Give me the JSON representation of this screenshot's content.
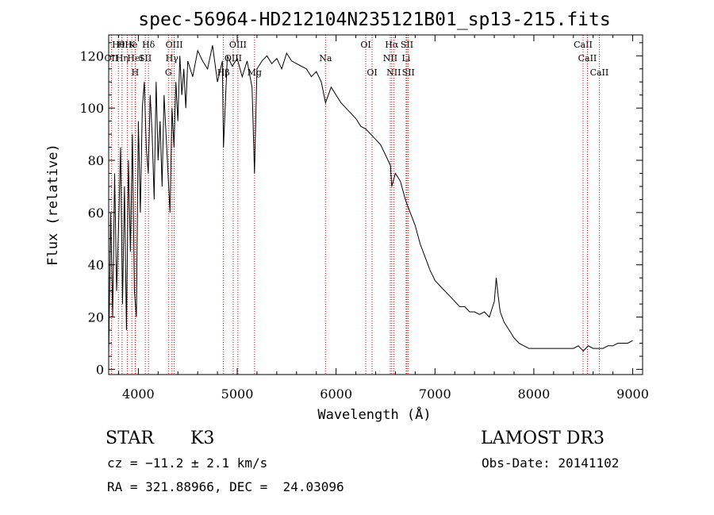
{
  "chart_data": {
    "type": "line",
    "title": "spec-56964-HD212104N235121B01_sp13-215.fits",
    "xlabel": "Wavelength (Å)",
    "ylabel": "Flux (relative)",
    "xlim": [
      3700,
      9100
    ],
    "ylim": [
      -2,
      128
    ],
    "xticks": [
      4000,
      5000,
      6000,
      7000,
      8000,
      9000
    ],
    "yticks": [
      0,
      20,
      40,
      60,
      80,
      100,
      120
    ],
    "grid": false,
    "spectrum": {
      "x": [
        3700,
        3720,
        3740,
        3760,
        3780,
        3800,
        3820,
        3840,
        3860,
        3880,
        3900,
        3920,
        3940,
        3960,
        3980,
        4000,
        4020,
        4040,
        4060,
        4080,
        4100,
        4120,
        4140,
        4160,
        4180,
        4200,
        4220,
        4240,
        4260,
        4280,
        4300,
        4320,
        4340,
        4360,
        4380,
        4400,
        4420,
        4440,
        4460,
        4480,
        4500,
        4550,
        4600,
        4650,
        4700,
        4750,
        4800,
        4850,
        4861,
        4900,
        4950,
        5000,
        5050,
        5100,
        5150,
        5175,
        5200,
        5250,
        5300,
        5350,
        5400,
        5450,
        5500,
        5550,
        5600,
        5650,
        5700,
        5750,
        5800,
        5850,
        5893,
        5950,
        6000,
        6050,
        6100,
        6150,
        6200,
        6250,
        6300,
        6350,
        6400,
        6450,
        6500,
        6550,
        6563,
        6600,
        6650,
        6700,
        6750,
        6800,
        6850,
        6900,
        6950,
        7000,
        7050,
        7100,
        7150,
        7200,
        7250,
        7300,
        7350,
        7400,
        7450,
        7500,
        7550,
        7600,
        7620,
        7640,
        7660,
        7700,
        7750,
        7800,
        7850,
        7900,
        7950,
        8000,
        8050,
        8100,
        8150,
        8200,
        8250,
        8300,
        8350,
        8400,
        8450,
        8500,
        8550,
        8600,
        8650,
        8700,
        8750,
        8800,
        8850,
        8900,
        8950,
        9000
      ],
      "y": [
        5,
        60,
        20,
        75,
        30,
        55,
        85,
        25,
        70,
        15,
        80,
        45,
        90,
        30,
        20,
        95,
        60,
        100,
        110,
        85,
        75,
        105,
        90,
        65,
        110,
        80,
        95,
        70,
        105,
        90,
        75,
        60,
        100,
        85,
        110,
        95,
        120,
        105,
        115,
        100,
        118,
        112,
        122,
        118,
        115,
        124,
        110,
        118,
        85,
        120,
        116,
        119,
        112,
        118,
        108,
        75,
        115,
        118,
        120,
        117,
        119,
        115,
        121,
        118,
        117,
        116,
        115,
        112,
        114,
        110,
        102,
        108,
        105,
        102,
        100,
        98,
        96,
        93,
        92,
        90,
        88,
        86,
        82,
        78,
        70,
        75,
        72,
        65,
        60,
        55,
        48,
        43,
        38,
        34,
        32,
        30,
        28,
        26,
        24,
        24,
        22,
        22,
        21,
        22,
        20,
        26,
        35,
        28,
        22,
        18,
        15,
        12,
        10,
        9,
        8,
        8,
        8,
        8,
        8,
        8,
        8,
        8,
        8,
        8,
        9,
        7,
        9,
        8,
        8,
        8,
        9,
        9,
        10,
        10,
        10,
        11
      ]
    },
    "lines": [
      {
        "name": "Hθ",
        "wavelength": 3798,
        "row": 1
      },
      {
        "name": "OII",
        "wavelength": 3727,
        "row": 2
      },
      {
        "name": "Hη",
        "wavelength": 3835,
        "row": 2
      },
      {
        "name": "HHe",
        "wavelength": 3889,
        "row": 1
      },
      {
        "name": "K",
        "wavelength": 3934,
        "row": 1
      },
      {
        "name": "HeI",
        "wavelength": 3970,
        "row": 2
      },
      {
        "name": "SII",
        "wavelength": 4070,
        "row": 2
      },
      {
        "name": "H",
        "wavelength": 3968,
        "row": 3
      },
      {
        "name": "Hδ",
        "wavelength": 4102,
        "row": 1
      },
      {
        "name": "OIII",
        "wavelength": 4363,
        "row": 1
      },
      {
        "name": "Hγ",
        "wavelength": 4340,
        "row": 2
      },
      {
        "name": "G",
        "wavelength": 4304,
        "row": 3
      },
      {
        "name": "Hβ",
        "wavelength": 4861,
        "row": 3
      },
      {
        "name": "OIII",
        "wavelength": 4959,
        "row": 2
      },
      {
        "name": "OIII",
        "wavelength": 5007,
        "row": 1
      },
      {
        "name": "Mg",
        "wavelength": 5175,
        "row": 3
      },
      {
        "name": "Na",
        "wavelength": 5893,
        "row": 2
      },
      {
        "name": "OI",
        "wavelength": 6300,
        "row": 1
      },
      {
        "name": "OI",
        "wavelength": 6364,
        "row": 3
      },
      {
        "name": "Hα",
        "wavelength": 6563,
        "row": 1
      },
      {
        "name": "NII",
        "wavelength": 6548,
        "row": 2
      },
      {
        "name": "NII",
        "wavelength": 6583,
        "row": 3
      },
      {
        "name": "SII",
        "wavelength": 6717,
        "row": 1
      },
      {
        "name": "Li",
        "wavelength": 6708,
        "row": 2
      },
      {
        "name": "SII",
        "wavelength": 6731,
        "row": 3
      },
      {
        "name": "CaII",
        "wavelength": 8498,
        "row": 1
      },
      {
        "name": "CaII",
        "wavelength": 8542,
        "row": 2
      },
      {
        "name": "CaII",
        "wavelength": 8662,
        "row": 3
      }
    ],
    "colors": {
      "spectrum": "#000000",
      "lines": "#cc0000"
    }
  },
  "info": {
    "class_label": "STAR",
    "subclass": "K3",
    "survey": "LAMOST DR3",
    "cz": "cz = −11.2 ± 2.1 km/s",
    "obs_date": "Obs-Date: 20141102",
    "coords": "RA = 321.88966, DEC =  24.03096"
  }
}
